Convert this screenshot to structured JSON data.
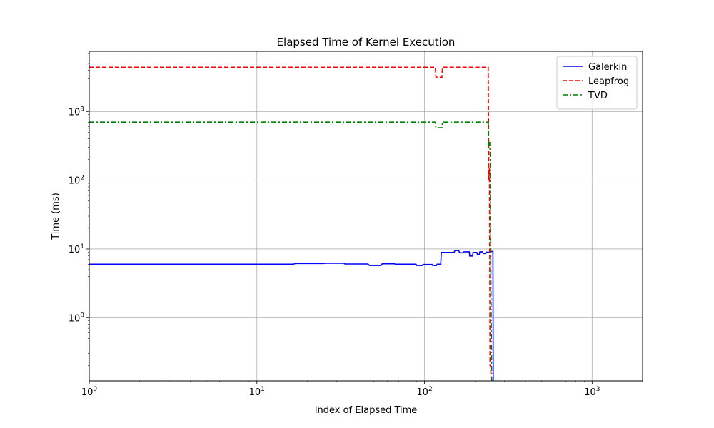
{
  "chart_data": {
    "type": "line",
    "title": "Elapsed Time of Kernel Execution",
    "xlabel": "Index of Elapsed Time",
    "ylabel": "Time (ms)",
    "xscale": "log",
    "yscale": "log",
    "xlim": [
      1,
      2000
    ],
    "ylim": [
      0.12,
      7500
    ],
    "grid": true,
    "legend_position": "top-right",
    "x_ticks": [
      {
        "value": 1,
        "base": "10",
        "exp": "0"
      },
      {
        "value": 10,
        "base": "10",
        "exp": "1"
      },
      {
        "value": 100,
        "base": "10",
        "exp": "2"
      },
      {
        "value": 1000,
        "base": "10",
        "exp": "3"
      }
    ],
    "y_ticks": [
      {
        "value": 1,
        "base": "10",
        "exp": "0"
      },
      {
        "value": 10,
        "base": "10",
        "exp": "1"
      },
      {
        "value": 100,
        "base": "10",
        "exp": "2"
      },
      {
        "value": 1000,
        "base": "10",
        "exp": "3"
      }
    ],
    "series": [
      {
        "name": "Galerkin",
        "color": "#0000ff",
        "dash": "solid",
        "points": [
          [
            1,
            6.0
          ],
          [
            16.5,
            6.0
          ],
          [
            17,
            6.15
          ],
          [
            25,
            6.15
          ],
          [
            25.5,
            6.2
          ],
          [
            33,
            6.2
          ],
          [
            33.5,
            6.05
          ],
          [
            46,
            6.05
          ],
          [
            47,
            5.75
          ],
          [
            55,
            5.75
          ],
          [
            56,
            6.1
          ],
          [
            66,
            6.1
          ],
          [
            67,
            6.0
          ],
          [
            89,
            6.0
          ],
          [
            90,
            5.75
          ],
          [
            97,
            5.75
          ],
          [
            98,
            5.95
          ],
          [
            111,
            5.95
          ],
          [
            112,
            5.75
          ],
          [
            118,
            5.75
          ],
          [
            119,
            6.0
          ],
          [
            125,
            6.0
          ],
          [
            126,
            8.9
          ],
          [
            150,
            8.9
          ],
          [
            152,
            9.5
          ],
          [
            160,
            9.5
          ],
          [
            162,
            8.8
          ],
          [
            170,
            8.8
          ],
          [
            172,
            9.1
          ],
          [
            185,
            9.1
          ],
          [
            186,
            7.9
          ],
          [
            193,
            7.9
          ],
          [
            195,
            8.9
          ],
          [
            205,
            8.9
          ],
          [
            207,
            8.3
          ],
          [
            212,
            8.3
          ],
          [
            214,
            9.1
          ],
          [
            222,
            9.1
          ],
          [
            224,
            8.6
          ],
          [
            232,
            8.6
          ],
          [
            234,
            9.0
          ],
          [
            245,
            9.0
          ],
          [
            247,
            9.2
          ],
          [
            256,
            9.2
          ],
          [
            257,
            0.12
          ]
        ]
      },
      {
        "name": "Leapfrog",
        "color": "#ff0000",
        "dash": "dashed",
        "points": [
          [
            1,
            4400
          ],
          [
            116,
            4400
          ],
          [
            117,
            3150
          ],
          [
            127,
            3150
          ],
          [
            128,
            4400
          ],
          [
            240,
            4400
          ],
          [
            242,
            100
          ],
          [
            244,
            150
          ],
          [
            246,
            0.2
          ],
          [
            248,
            0.2
          ],
          [
            250,
            0.12
          ]
        ]
      },
      {
        "name": "TVD",
        "color": "#008000",
        "dash": "dashdot",
        "points": [
          [
            1,
            700
          ],
          [
            116,
            700
          ],
          [
            117,
            580
          ],
          [
            127,
            580
          ],
          [
            128,
            700
          ],
          [
            240,
            700
          ],
          [
            242,
            300
          ],
          [
            245,
            360
          ],
          [
            247,
            200
          ],
          [
            249,
            3.0
          ],
          [
            252,
            0.12
          ]
        ]
      }
    ]
  }
}
